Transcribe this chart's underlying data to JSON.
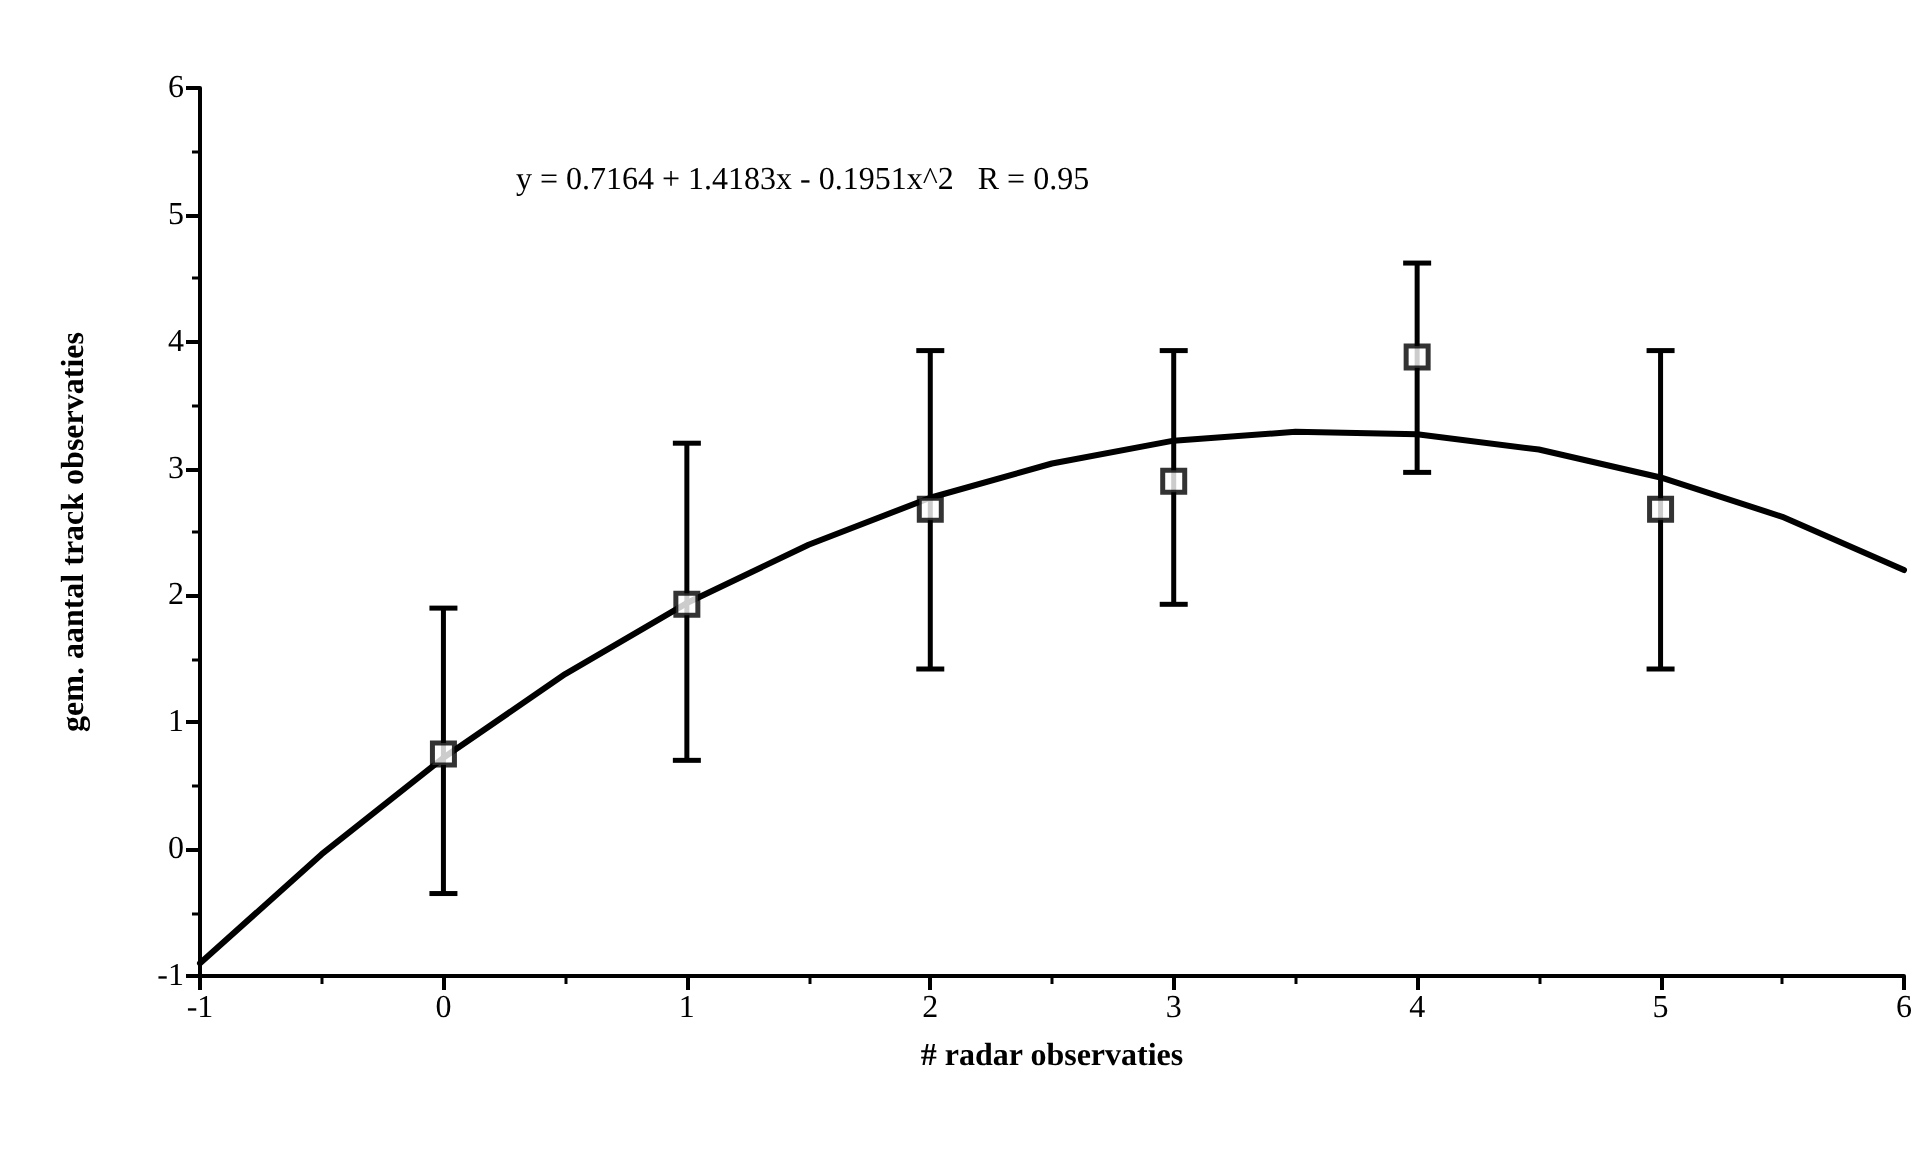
{
  "chart_data": {
    "type": "scatter",
    "xlabel": "# radar observaties",
    "ylabel": "gem. aantal track observaties",
    "annotations": [
      "y = 0.7164 + 1.4183x - 0.1951x^2   R = 0.95"
    ],
    "xlim": [
      -1,
      6
    ],
    "xticks": [
      -1,
      0,
      1,
      2,
      3,
      4,
      5,
      6
    ],
    "ylim": [
      -1,
      6
    ],
    "yticks": [
      -1,
      0,
      1,
      2,
      3,
      4,
      5,
      6
    ],
    "grid": false,
    "series": [
      {
        "color": "#000000",
        "marker": "square",
        "x": [
          0,
          1,
          2,
          3,
          4,
          5
        ],
        "values": [
          0.75,
          1.93,
          2.68,
          2.9,
          3.88,
          2.68
        ],
        "errors": [
          [
            -0.35,
            1.9
          ],
          [
            0.7,
            3.2
          ],
          [
            1.42,
            3.93
          ],
          [
            1.93,
            3.93
          ],
          [
            2.97,
            4.62
          ],
          [
            1.42,
            3.93
          ]
        ]
      },
      {
        "type": "line",
        "color": "#000000",
        "line_style": "solid",
        "marker": "none",
        "x": [
          -1,
          -0.5,
          0,
          0.5,
          1,
          1.5,
          2,
          2.5,
          3,
          3.5,
          4,
          4.5,
          5,
          5.5,
          6
        ],
        "values": [
          -0.9,
          -0.04,
          0.72,
          1.38,
          1.94,
          2.4,
          2.77,
          3.04,
          3.22,
          3.29,
          3.27,
          3.15,
          2.93,
          2.62,
          2.2
        ]
      }
    ]
  }
}
